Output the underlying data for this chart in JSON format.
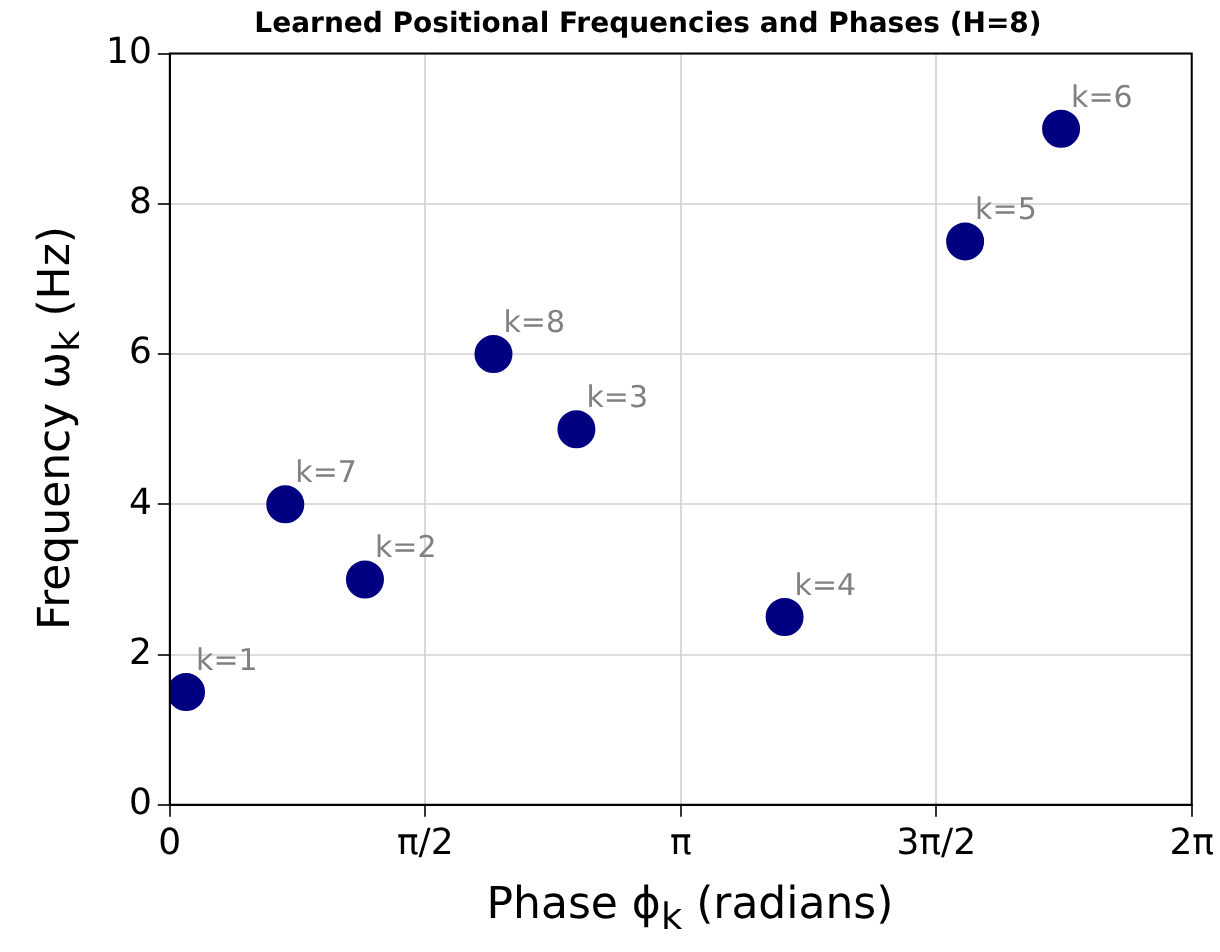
{
  "chart_data": {
    "type": "scatter",
    "title": "Learned Positional Frequencies and Phases (H=8)",
    "xlabel": "Phase ϕ$_{k}$ (radians)",
    "ylabel": "Frequency ω$_{k}$ (Hz)",
    "x": [
      0.1,
      0.71,
      1.2,
      1.99,
      2.5,
      3.78,
      4.89,
      5.48
    ],
    "values": [
      1.5,
      4,
      3,
      6,
      5,
      2.5,
      7.5,
      9
    ],
    "color": "#000080",
    "xlim": [
      0,
      6.2831853
    ],
    "xticks": [
      0,
      {
        "value": 1.5707963,
        "label": "π/2"
      },
      {
        "value": 3.1415927,
        "label": "π"
      },
      {
        "value": 4.712389,
        "label": "3π/2"
      },
      {
        "value": 6.2831853,
        "label": "2π"
      }
    ],
    "ylim": [
      0,
      10
    ],
    "yticks": [
      0,
      2,
      4,
      6,
      8,
      10
    ],
    "annotations": [
      {
        "text": "k=1",
        "x": 0.1,
        "y": 1.5
      },
      {
        "text": "k=7",
        "x": 0.71,
        "y": 4
      },
      {
        "text": "k=2",
        "x": 1.2,
        "y": 3
      },
      {
        "text": "k=8",
        "x": 1.99,
        "y": 6
      },
      {
        "text": "k=3",
        "x": 2.5,
        "y": 5
      },
      {
        "text": "k=4",
        "x": 3.78,
        "y": 2.5
      },
      {
        "text": "k=5",
        "x": 4.89,
        "y": 7.5
      },
      {
        "text": "k=6",
        "x": 5.48,
        "y": 9
      }
    ],
    "grid": true,
    "marker": "circle",
    "legend": false
  }
}
